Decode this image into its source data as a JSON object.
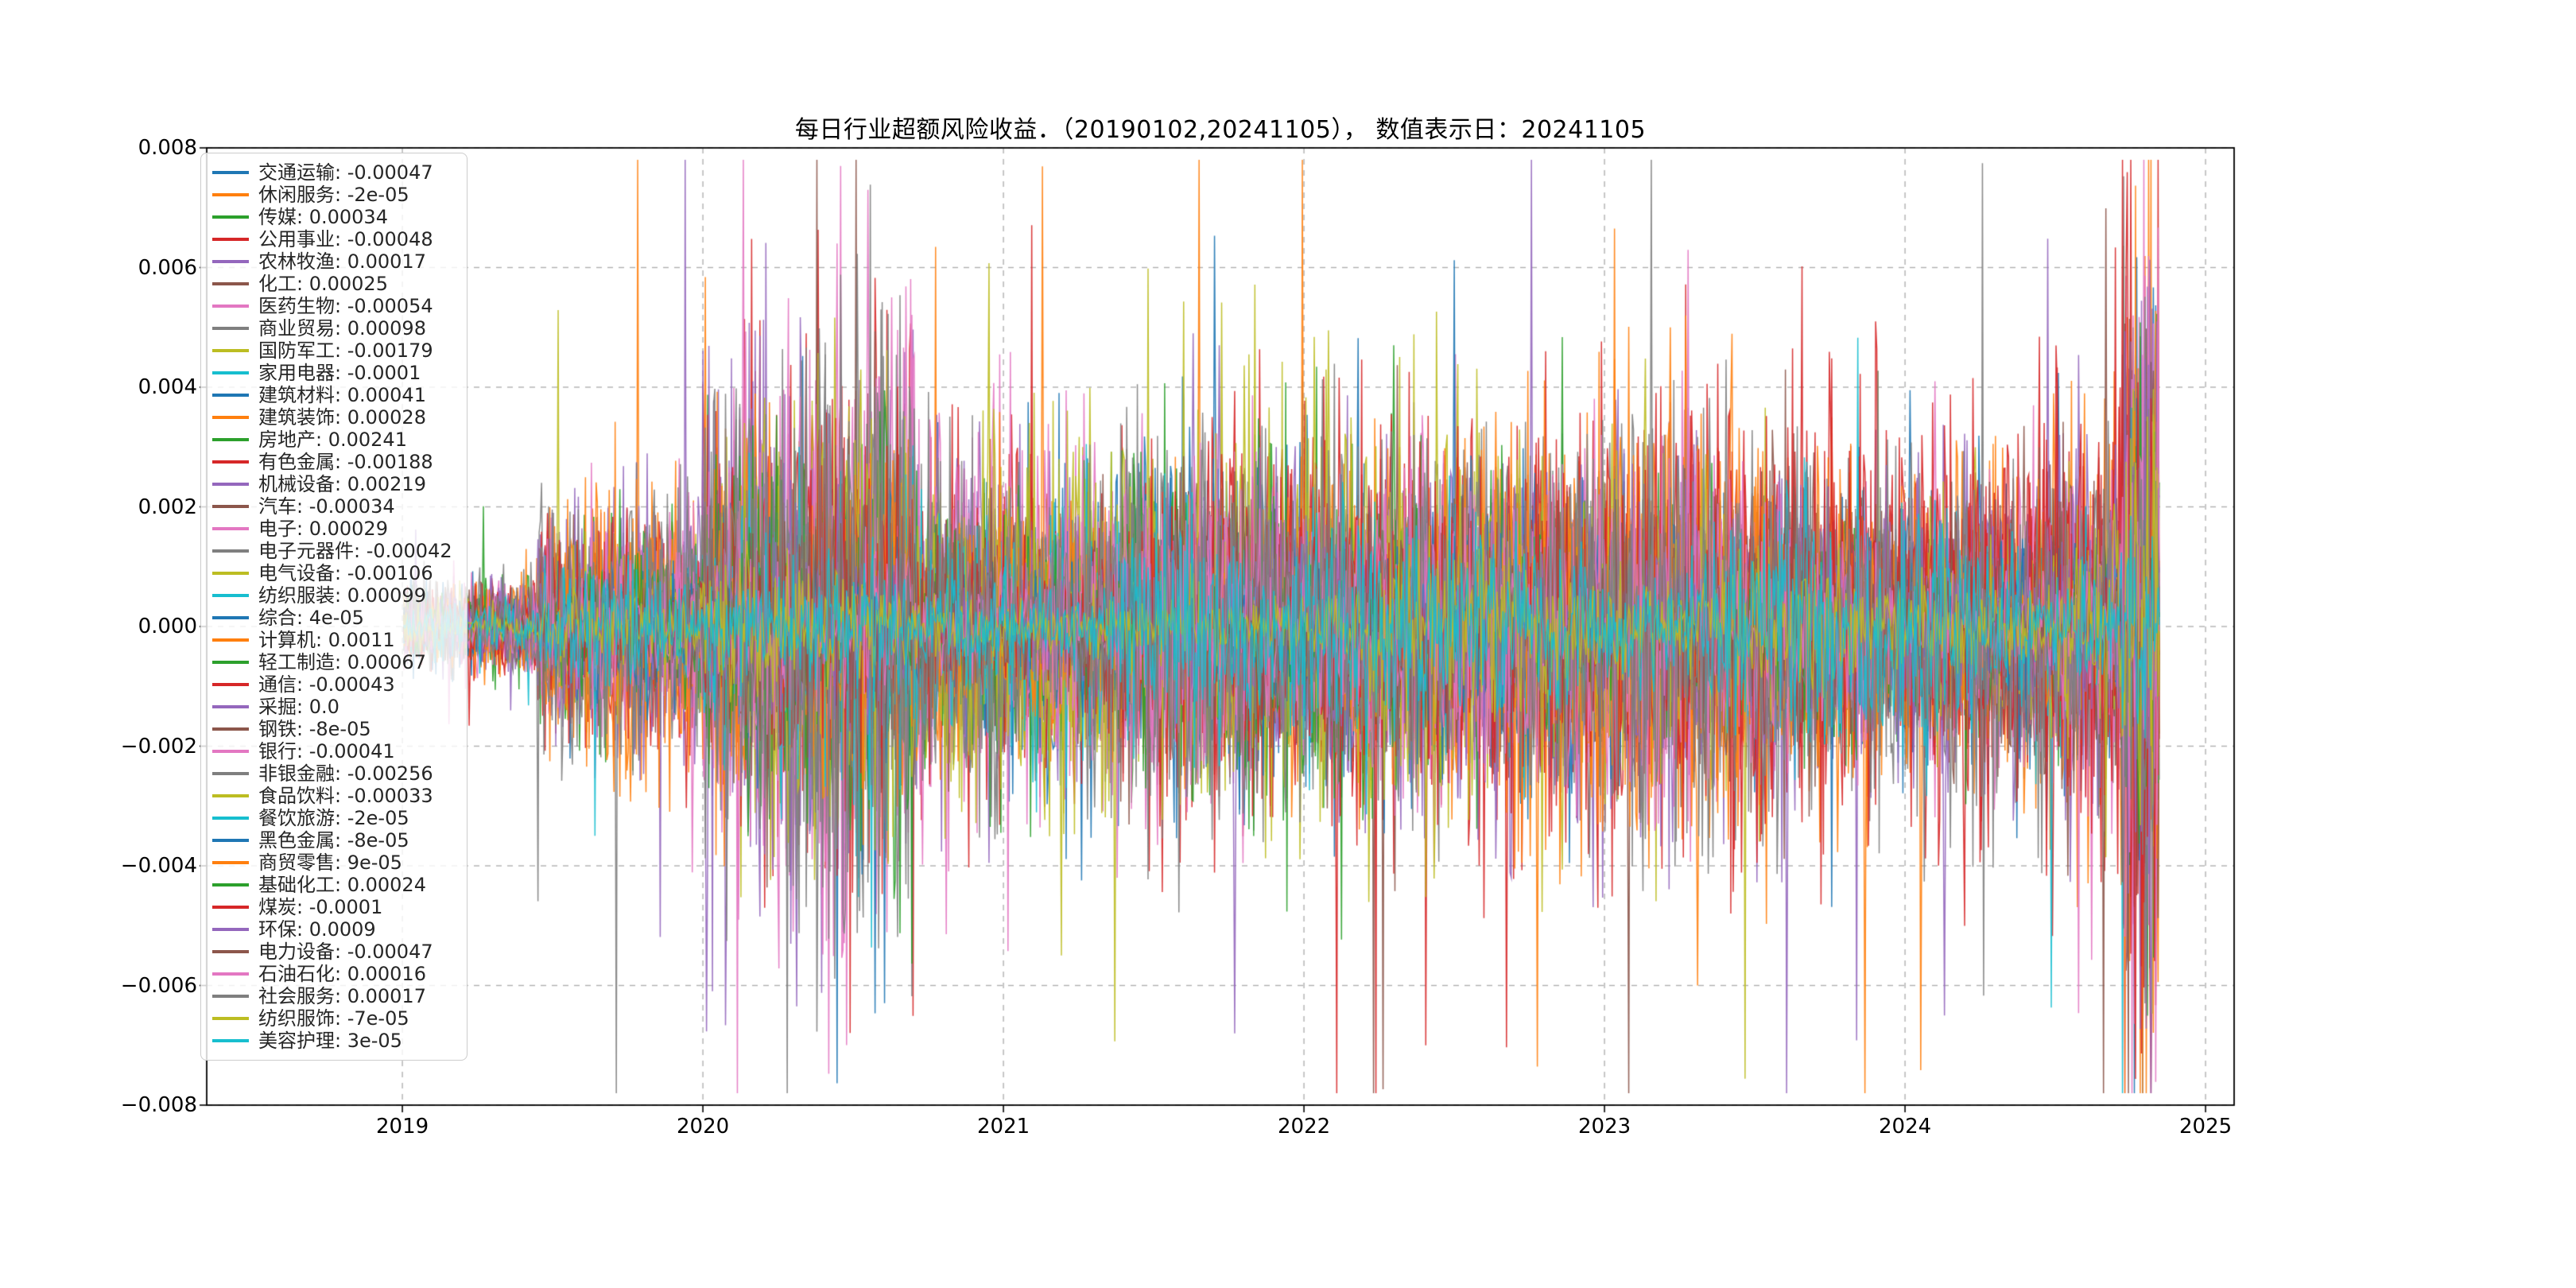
{
  "chart_data": {
    "type": "line",
    "title": "每日行业超额风险收益．（20190102,20241105）， 数值表示日：20241105",
    "date_start": "20190102",
    "date_end": "20241105",
    "value_display_date": "20241105",
    "xlim": [
      2018.349,
      2025.095
    ],
    "ylim": [
      -0.008,
      0.008
    ],
    "grid": true,
    "grid_style": "dashed",
    "grid_color": "#b0b0b0",
    "legend_position": "upper-left",
    "x_ticks": [
      {
        "v": 2019,
        "label": "2019"
      },
      {
        "v": 2020,
        "label": "2020"
      },
      {
        "v": 2021,
        "label": "2021"
      },
      {
        "v": 2022,
        "label": "2022"
      },
      {
        "v": 2023,
        "label": "2023"
      },
      {
        "v": 2024,
        "label": "2024"
      },
      {
        "v": 2025,
        "label": "2025"
      }
    ],
    "y_ticks": [
      {
        "v": 0.008,
        "label": "0.008"
      },
      {
        "v": 0.006,
        "label": "0.006"
      },
      {
        "v": 0.004,
        "label": "0.004"
      },
      {
        "v": 0.002,
        "label": "0.002"
      },
      {
        "v": 0.0,
        "label": "0.000"
      },
      {
        "v": -0.002,
        "label": "−0.002"
      },
      {
        "v": -0.004,
        "label": "−0.004"
      },
      {
        "v": -0.006,
        "label": "−0.006"
      },
      {
        "v": -0.008,
        "label": "−0.008"
      }
    ],
    "series": [
      {
        "name": "交通运输",
        "label": "交通运输: -0.00047",
        "value": -0.00047,
        "color": "#1f77b4"
      },
      {
        "name": "休闲服务",
        "label": "休闲服务: -2e-05",
        "value": -2e-05,
        "color": "#ff7f0e"
      },
      {
        "name": "传媒",
        "label": "传媒: 0.00034",
        "value": 0.00034,
        "color": "#2ca02c"
      },
      {
        "name": "公用事业",
        "label": "公用事业: -0.00048",
        "value": -0.00048,
        "color": "#d62728"
      },
      {
        "name": "农林牧渔",
        "label": "农林牧渔: 0.00017",
        "value": 0.00017,
        "color": "#9467bd"
      },
      {
        "name": "化工",
        "label": "化工: 0.00025",
        "value": 0.00025,
        "color": "#8c564b"
      },
      {
        "name": "医药生物",
        "label": "医药生物: -0.00054",
        "value": -0.00054,
        "color": "#e377c2"
      },
      {
        "name": "商业贸易",
        "label": "商业贸易: 0.00098",
        "value": 0.00098,
        "color": "#7f7f7f"
      },
      {
        "name": "国防军工",
        "label": "国防军工: -0.00179",
        "value": -0.00179,
        "color": "#bcbd22"
      },
      {
        "name": "家用电器",
        "label": "家用电器: -0.0001",
        "value": -0.0001,
        "color": "#17becf"
      },
      {
        "name": "建筑材料",
        "label": "建筑材料: 0.00041",
        "value": 0.00041,
        "color": "#1f77b4"
      },
      {
        "name": "建筑装饰",
        "label": "建筑装饰: 0.00028",
        "value": 0.00028,
        "color": "#ff7f0e"
      },
      {
        "name": "房地产",
        "label": "房地产: 0.00241",
        "value": 0.00241,
        "color": "#2ca02c"
      },
      {
        "name": "有色金属",
        "label": "有色金属: -0.00188",
        "value": -0.00188,
        "color": "#d62728"
      },
      {
        "name": "机械设备",
        "label": "机械设备: 0.00219",
        "value": 0.00219,
        "color": "#9467bd"
      },
      {
        "name": "汽车",
        "label": "汽车: -0.00034",
        "value": -0.00034,
        "color": "#8c564b"
      },
      {
        "name": "电子",
        "label": "电子: 0.00029",
        "value": 0.00029,
        "color": "#e377c2"
      },
      {
        "name": "电子元器件",
        "label": "电子元器件: -0.00042",
        "value": -0.00042,
        "color": "#7f7f7f"
      },
      {
        "name": "电气设备",
        "label": "电气设备: -0.00106",
        "value": -0.00106,
        "color": "#bcbd22"
      },
      {
        "name": "纺织服装",
        "label": "纺织服装: 0.00099",
        "value": 0.00099,
        "color": "#17becf"
      },
      {
        "name": "综合",
        "label": "综合: 4e-05",
        "value": 4e-05,
        "color": "#1f77b4"
      },
      {
        "name": "计算机",
        "label": "计算机: 0.0011",
        "value": 0.0011,
        "color": "#ff7f0e"
      },
      {
        "name": "轻工制造",
        "label": "轻工制造: 0.00067",
        "value": 0.00067,
        "color": "#2ca02c"
      },
      {
        "name": "通信",
        "label": "通信: -0.00043",
        "value": -0.00043,
        "color": "#d62728"
      },
      {
        "name": "采掘",
        "label": "采掘: 0.0",
        "value": 0.0,
        "color": "#9467bd"
      },
      {
        "name": "钢铁",
        "label": "钢铁: -8e-05",
        "value": -8e-05,
        "color": "#8c564b"
      },
      {
        "name": "银行",
        "label": "银行: -0.00041",
        "value": -0.00041,
        "color": "#e377c2"
      },
      {
        "name": "非银金融",
        "label": "非银金融: -0.00256",
        "value": -0.00256,
        "color": "#7f7f7f"
      },
      {
        "name": "食品饮料",
        "label": "食品饮料: -0.00033",
        "value": -0.00033,
        "color": "#bcbd22"
      },
      {
        "name": "餐饮旅游",
        "label": "餐饮旅游: -2e-05",
        "value": -2e-05,
        "color": "#17becf"
      },
      {
        "name": "黑色金属",
        "label": "黑色金属: -8e-05",
        "value": -8e-05,
        "color": "#1f77b4"
      },
      {
        "name": "商贸零售",
        "label": "商贸零售: 9e-05",
        "value": 9e-05,
        "color": "#ff7f0e"
      },
      {
        "name": "基础化工",
        "label": "基础化工: 0.00024",
        "value": 0.00024,
        "color": "#2ca02c"
      },
      {
        "name": "煤炭",
        "label": "煤炭: -0.0001",
        "value": -0.0001,
        "color": "#d62728"
      },
      {
        "name": "环保",
        "label": "环保: 0.0009",
        "value": 0.0009,
        "color": "#9467bd"
      },
      {
        "name": "电力设备",
        "label": "电力设备: -0.00047",
        "value": -0.00047,
        "color": "#8c564b"
      },
      {
        "name": "石油石化",
        "label": "石油石化: 0.00016",
        "value": 0.00016,
        "color": "#e377c2"
      },
      {
        "name": "社会服务",
        "label": "社会服务: 0.00017",
        "value": 0.00017,
        "color": "#7f7f7f"
      },
      {
        "name": "纺织服饰",
        "label": "纺织服饰: -7e-05",
        "value": -7e-05,
        "color": "#bcbd22"
      },
      {
        "name": "美容护理",
        "label": "美容护理: 3e-05",
        "value": 3e-05,
        "color": "#17becf"
      }
    ],
    "notable_extremes": [
      {
        "series": "医药生物",
        "t": 2020.12,
        "v": -0.0049
      },
      {
        "series": "医药生物",
        "t": 2020.3,
        "v": -0.0051
      },
      {
        "series": "医药生物",
        "t": 2020.55,
        "v": 0.0073
      },
      {
        "series": "医药生物",
        "t": 2020.63,
        "v": 0.0055
      },
      {
        "series": "农林牧渔",
        "t": 2021.63,
        "v": 0.0049
      },
      {
        "series": "农林牧渔",
        "t": 2021.72,
        "v": 0.0047
      },
      {
        "series": "采掘",
        "t": 2021.77,
        "v": -0.0068
      },
      {
        "series": "基础化工",
        "t": 2022.3,
        "v": 0.0047
      },
      {
        "series": "商贸零售",
        "t": 2023.22,
        "v": 0.005
      },
      {
        "series": "计算机",
        "t": 2023.27,
        "v": 0.0052
      },
      {
        "series": "计算机",
        "t": 2023.31,
        "v": -0.006
      },
      {
        "series": "医药生物",
        "t": 2024.1,
        "v": 0.0041
      },
      {
        "series": "环保",
        "t": 2024.13,
        "v": -0.0065
      },
      {
        "series": "传媒",
        "t": 2024.76,
        "v": 0.005
      },
      {
        "series": "非银金融",
        "t": 2024.8,
        "v": -0.0063
      },
      {
        "series": "环保",
        "t": 2024.82,
        "v": -0.0078
      },
      {
        "series": "机械设备",
        "t": 2024.84,
        "v": 0.0051
      }
    ]
  }
}
